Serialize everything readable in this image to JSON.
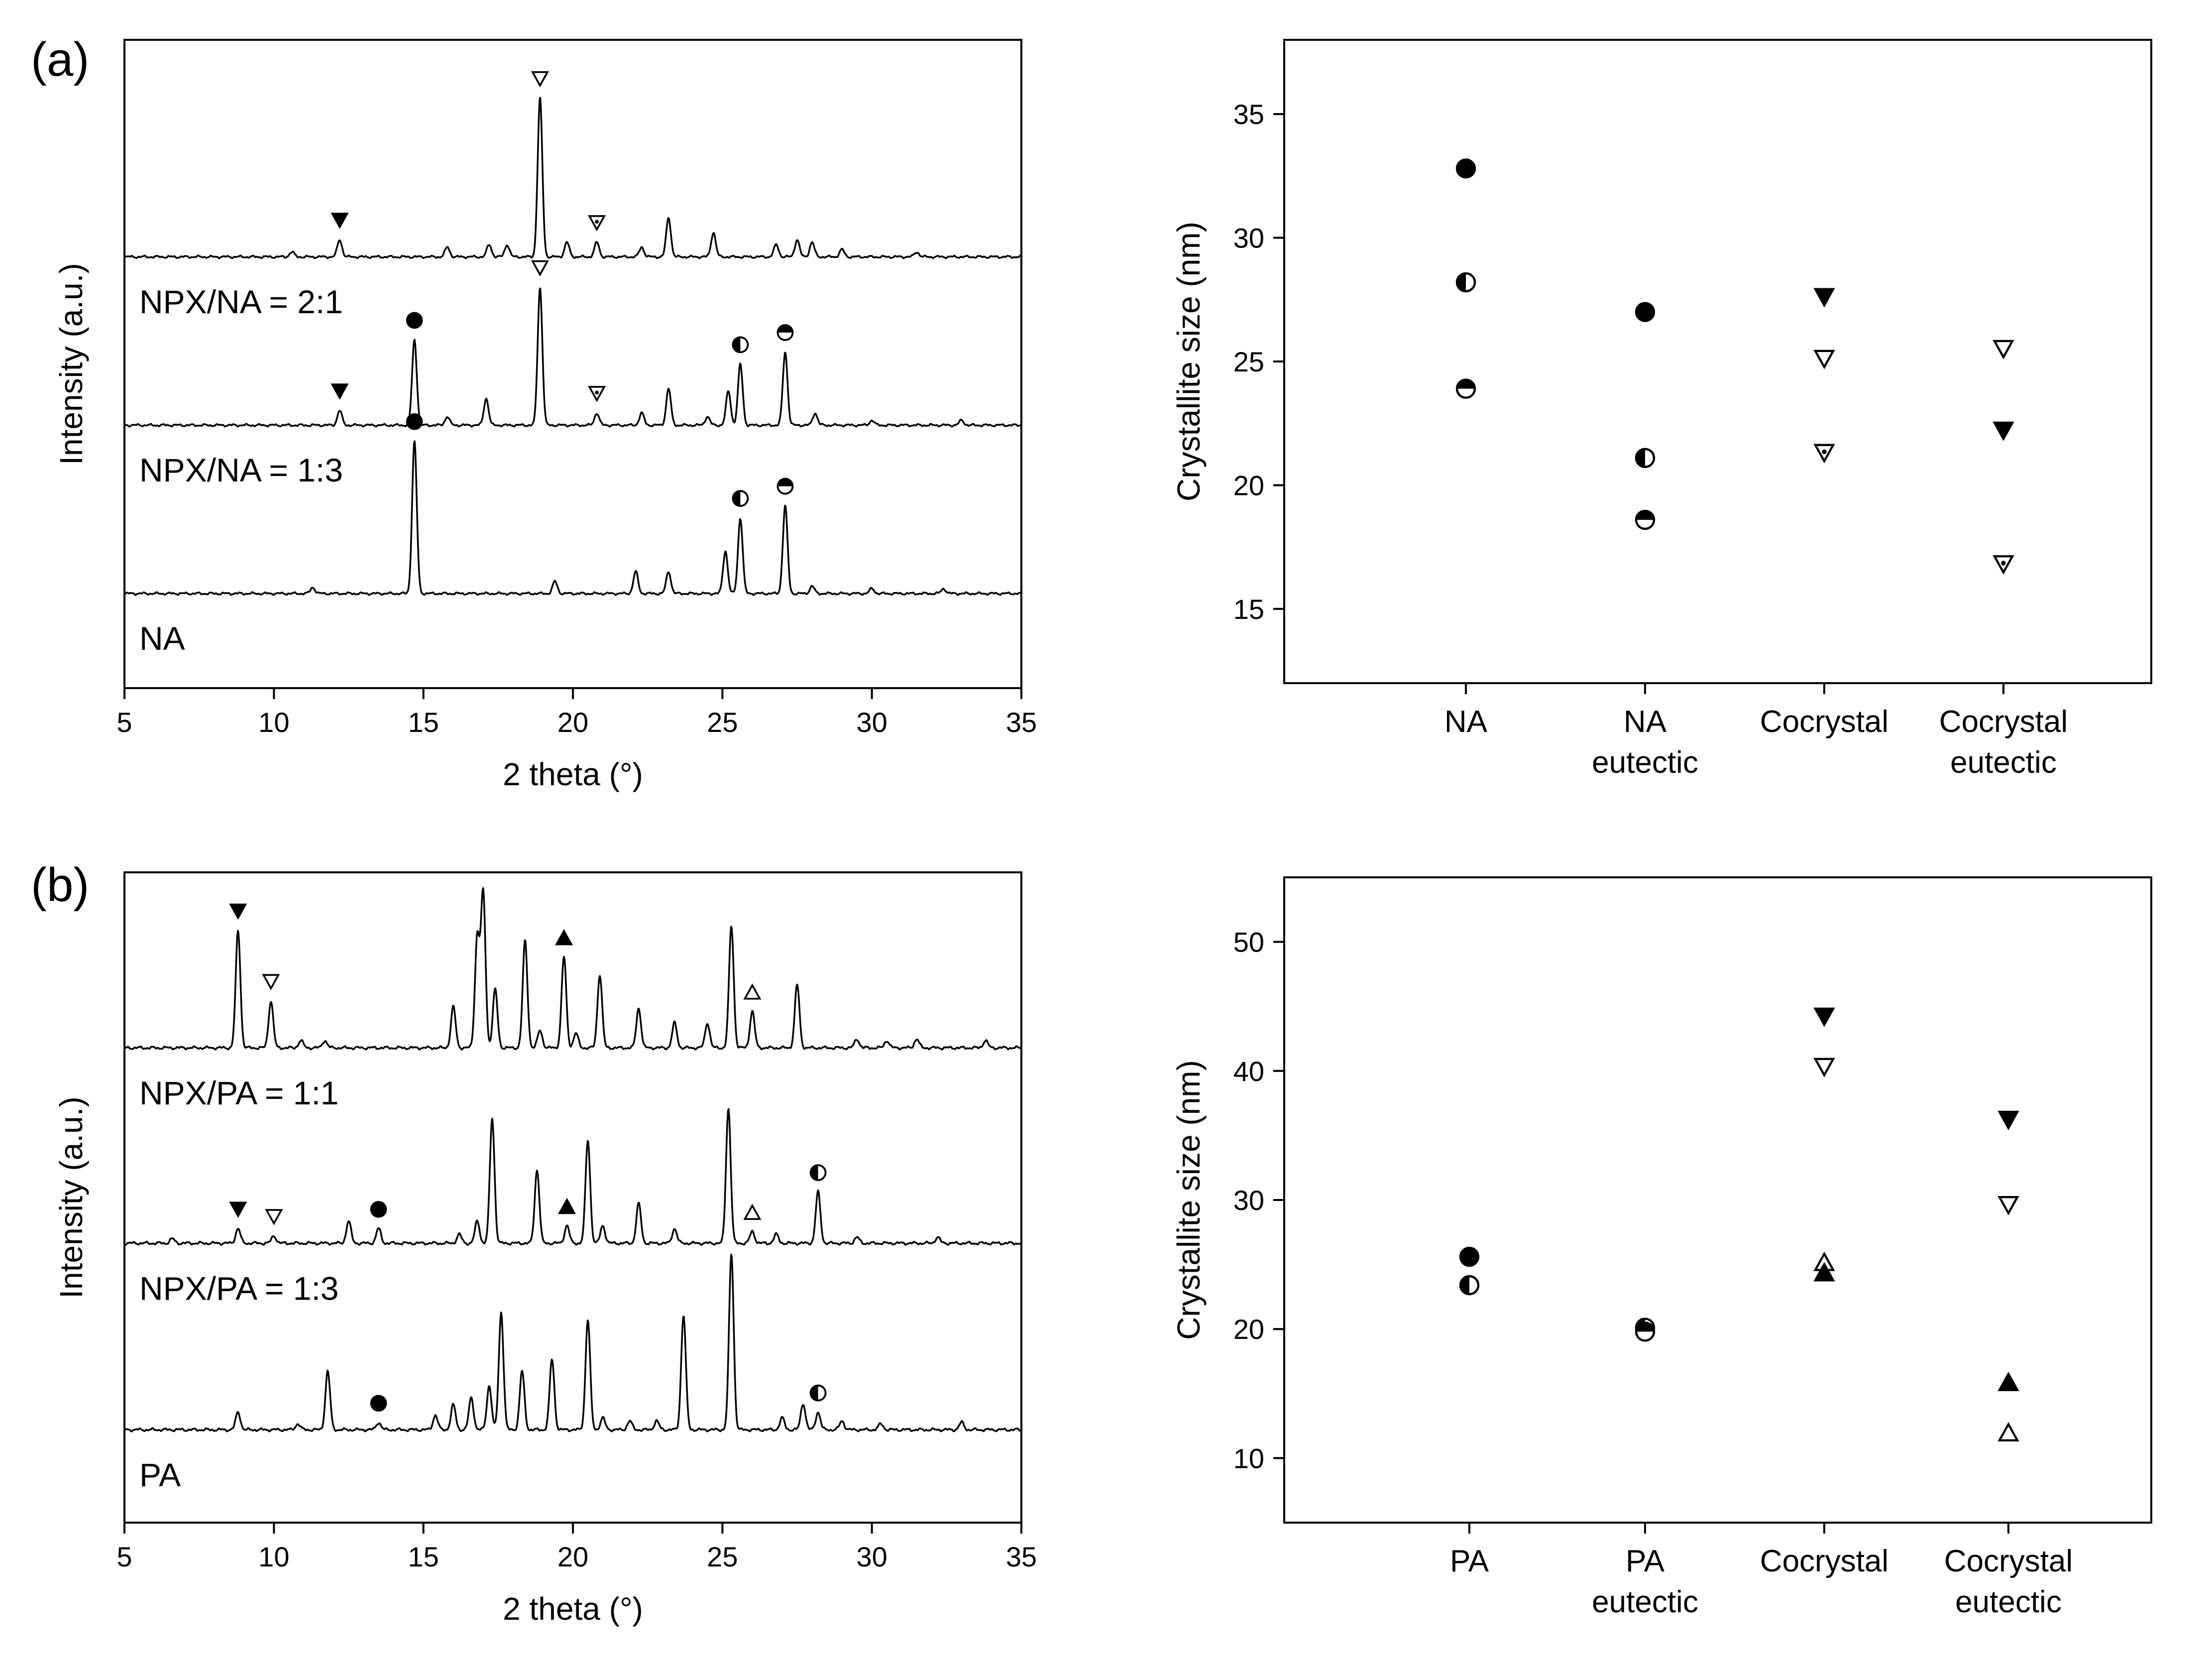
{
  "figure": {
    "panel_a_label": "(a)",
    "panel_b_label": "(b)"
  },
  "chart_data": [
    {
      "id": "a-xrd",
      "type": "line",
      "title": "",
      "xlabel": "2 theta (°)",
      "ylabel": "Intensity (a.u.)",
      "xlim": [
        5,
        35
      ],
      "xticks": [
        5,
        10,
        15,
        20,
        25,
        30,
        35
      ],
      "yticks": [],
      "offsets": [
        0,
        1.38,
        2.76
      ],
      "series": [
        {
          "name": "NA",
          "label": "NA",
          "offset_index": 0,
          "peaks": [
            [
              11.3,
              0.05
            ],
            [
              14.7,
              1.25
            ],
            [
              19.4,
              0.1
            ],
            [
              22.1,
              0.18
            ],
            [
              23.2,
              0.18
            ],
            [
              25.1,
              0.35
            ],
            [
              25.6,
              0.62
            ],
            [
              27.1,
              0.72
            ],
            [
              28.0,
              0.06
            ],
            [
              30.0,
              0.04
            ],
            [
              32.4,
              0.04
            ]
          ],
          "markers": [
            {
              "x": 14.7,
              "symbol": "filled-circle"
            },
            {
              "x": 25.6,
              "symbol": "half-left-circle"
            },
            {
              "x": 27.1,
              "symbol": "half-top-circle"
            }
          ]
        },
        {
          "name": "NPX/NA = 1:3",
          "label": "NPX/NA = 1:3",
          "offset_index": 1,
          "peaks": [
            [
              12.2,
              0.12
            ],
            [
              14.7,
              0.7
            ],
            [
              15.8,
              0.07
            ],
            [
              17.1,
              0.22
            ],
            [
              18.9,
              1.13
            ],
            [
              20.8,
              0.1
            ],
            [
              22.3,
              0.1
            ],
            [
              23.2,
              0.3
            ],
            [
              24.5,
              0.07
            ],
            [
              25.2,
              0.28
            ],
            [
              25.6,
              0.5
            ],
            [
              27.1,
              0.6
            ],
            [
              28.1,
              0.1
            ],
            [
              30.0,
              0.04
            ],
            [
              33.0,
              0.04
            ]
          ],
          "markers": [
            {
              "x": 12.2,
              "symbol": "filled-triangle-down"
            },
            {
              "x": 14.7,
              "symbol": "filled-circle"
            },
            {
              "x": 18.9,
              "symbol": "open-triangle-down"
            },
            {
              "x": 20.8,
              "symbol": "dotted-triangle-down"
            },
            {
              "x": 25.6,
              "symbol": "half-left-circle"
            },
            {
              "x": 27.1,
              "symbol": "half-top-circle"
            }
          ]
        },
        {
          "name": "NPX/NA = 2:1",
          "label": "NPX/NA = 2:1",
          "offset_index": 2,
          "peaks": [
            [
              10.6,
              0.04
            ],
            [
              12.2,
              0.14
            ],
            [
              15.8,
              0.08
            ],
            [
              17.2,
              0.1
            ],
            [
              17.8,
              0.1
            ],
            [
              18.9,
              1.3
            ],
            [
              19.8,
              0.12
            ],
            [
              20.8,
              0.12
            ],
            [
              22.3,
              0.08
            ],
            [
              23.2,
              0.32
            ],
            [
              24.7,
              0.2
            ],
            [
              26.8,
              0.1
            ],
            [
              27.5,
              0.14
            ],
            [
              28.0,
              0.12
            ],
            [
              29.0,
              0.06
            ],
            [
              31.5,
              0.04
            ]
          ],
          "markers": [
            {
              "x": 12.2,
              "symbol": "filled-triangle-down"
            },
            {
              "x": 18.9,
              "symbol": "open-triangle-down"
            },
            {
              "x": 20.8,
              "symbol": "dotted-triangle-down"
            }
          ]
        }
      ]
    },
    {
      "id": "a-size",
      "type": "scatter",
      "title": "",
      "xlabel": "",
      "ylabel": "Crystallite size (nm)",
      "ylim": [
        12,
        38
      ],
      "yticks": [
        15,
        20,
        25,
        30,
        35
      ],
      "categories": [
        {
          "line1": "NA",
          "line2": ""
        },
        {
          "line1": "NA",
          "line2": "eutectic"
        },
        {
          "line1": "Cocrystal",
          "line2": ""
        },
        {
          "line1": "Cocrystal",
          "line2": "eutectic"
        }
      ],
      "points": [
        {
          "category": 0,
          "value": 32.8,
          "symbol": "filled-circle"
        },
        {
          "category": 0,
          "value": 28.2,
          "symbol": "half-left-circle"
        },
        {
          "category": 0,
          "value": 23.9,
          "symbol": "half-top-circle"
        },
        {
          "category": 1,
          "value": 27.0,
          "symbol": "filled-circle"
        },
        {
          "category": 1,
          "value": 21.1,
          "symbol": "half-left-circle"
        },
        {
          "category": 1,
          "value": 18.6,
          "symbol": "half-top-circle"
        },
        {
          "category": 2,
          "value": 27.6,
          "symbol": "filled-triangle-down"
        },
        {
          "category": 2,
          "value": 25.1,
          "symbol": "open-triangle-down"
        },
        {
          "category": 2,
          "value": 21.3,
          "symbol": "dotted-triangle-down"
        },
        {
          "category": 3,
          "value": 25.5,
          "symbol": "open-triangle-down"
        },
        {
          "category": 3,
          "value": 22.2,
          "symbol": "filled-triangle-down"
        },
        {
          "category": 3,
          "value": 16.8,
          "symbol": "dotted-triangle-down"
        }
      ]
    },
    {
      "id": "b-xrd",
      "type": "line",
      "title": "",
      "xlabel": "2 theta (°)",
      "ylabel": "Intensity (a.u.)",
      "xlim": [
        5,
        35
      ],
      "xticks": [
        5,
        10,
        15,
        20,
        25,
        30,
        35
      ],
      "yticks": [],
      "offsets": [
        0,
        1.27,
        2.6
      ],
      "series": [
        {
          "name": "PA",
          "label": "PA",
          "offset_index": 0,
          "peaks": [
            [
              8.8,
              0.12
            ],
            [
              10.8,
              0.04
            ],
            [
              11.8,
              0.4
            ],
            [
              13.5,
              0.05
            ],
            [
              15.4,
              0.1
            ],
            [
              16.0,
              0.17
            ],
            [
              16.6,
              0.22
            ],
            [
              17.2,
              0.3
            ],
            [
              17.6,
              0.8
            ],
            [
              18.3,
              0.4
            ],
            [
              19.3,
              0.48
            ],
            [
              20.5,
              0.75
            ],
            [
              21.0,
              0.08
            ],
            [
              21.9,
              0.06
            ],
            [
              22.8,
              0.06
            ],
            [
              23.7,
              0.78
            ],
            [
              25.3,
              1.2
            ],
            [
              27.0,
              0.08
            ],
            [
              27.7,
              0.18
            ],
            [
              28.2,
              0.12
            ],
            [
              29.0,
              0.06
            ],
            [
              30.3,
              0.04
            ],
            [
              33.0,
              0.05
            ]
          ],
          "markers": [
            {
              "x": 13.5,
              "symbol": "filled-circle"
            },
            {
              "x": 28.2,
              "symbol": "half-left-circle"
            }
          ]
        },
        {
          "name": "NPX/PA = 1:3",
          "label": "NPX/PA = 1:3",
          "offset_index": 1,
          "peaks": [
            [
              6.6,
              0.03
            ],
            [
              8.8,
              0.1
            ],
            [
              10.0,
              0.05
            ],
            [
              12.5,
              0.15
            ],
            [
              13.5,
              0.1
            ],
            [
              16.2,
              0.06
            ],
            [
              16.8,
              0.15
            ],
            [
              17.3,
              0.85
            ],
            [
              18.8,
              0.5
            ],
            [
              19.8,
              0.12
            ],
            [
              20.5,
              0.7
            ],
            [
              21.0,
              0.12
            ],
            [
              22.2,
              0.27
            ],
            [
              23.4,
              0.1
            ],
            [
              25.2,
              0.92
            ],
            [
              26.0,
              0.08
            ],
            [
              26.8,
              0.06
            ],
            [
              28.2,
              0.35
            ],
            [
              29.5,
              0.04
            ],
            [
              32.2,
              0.04
            ]
          ],
          "markers": [
            {
              "x": 8.8,
              "symbol": "filled-triangle-down"
            },
            {
              "x": 10.0,
              "symbol": "open-triangle-down"
            },
            {
              "x": 13.5,
              "symbol": "filled-circle"
            },
            {
              "x": 19.8,
              "symbol": "filled-triangle-up"
            },
            {
              "x": 26.0,
              "symbol": "open-triangle-up"
            },
            {
              "x": 28.2,
              "symbol": "half-left-circle"
            }
          ]
        },
        {
          "name": "NPX/PA = 1:1",
          "label": "NPX/PA = 1:1",
          "offset_index": 2,
          "peaks": [
            [
              8.8,
              0.8
            ],
            [
              9.9,
              0.32
            ],
            [
              10.9,
              0.05
            ],
            [
              11.7,
              0.05
            ],
            [
              16.0,
              0.28
            ],
            [
              16.8,
              0.75
            ],
            [
              17.0,
              1.05
            ],
            [
              17.4,
              0.4
            ],
            [
              18.4,
              0.73
            ],
            [
              18.9,
              0.12
            ],
            [
              19.7,
              0.62
            ],
            [
              20.1,
              0.1
            ],
            [
              20.9,
              0.5
            ],
            [
              22.2,
              0.27
            ],
            [
              23.4,
              0.17
            ],
            [
              24.5,
              0.17
            ],
            [
              25.3,
              0.83
            ],
            [
              26.0,
              0.25
            ],
            [
              27.5,
              0.43
            ],
            [
              29.5,
              0.06
            ],
            [
              30.5,
              0.05
            ],
            [
              31.5,
              0.06
            ],
            [
              33.8,
              0.05
            ]
          ],
          "markers": [
            {
              "x": 8.8,
              "symbol": "filled-triangle-down"
            },
            {
              "x": 9.9,
              "symbol": "open-triangle-down"
            },
            {
              "x": 19.7,
              "symbol": "filled-triangle-up"
            },
            {
              "x": 26.0,
              "symbol": "open-triangle-up"
            }
          ]
        }
      ]
    },
    {
      "id": "b-size",
      "type": "scatter",
      "title": "",
      "xlabel": "",
      "ylabel": "Crystallite size (nm)",
      "ylim": [
        5,
        55
      ],
      "yticks": [
        10,
        20,
        30,
        40,
        50
      ],
      "categories": [
        {
          "line1": "PA",
          "line2": ""
        },
        {
          "line1": "PA",
          "line2": "eutectic"
        },
        {
          "line1": "Cocrystal",
          "line2": ""
        },
        {
          "line1": "Cocrystal",
          "line2": "eutectic"
        }
      ],
      "points": [
        {
          "category": 0,
          "value": 25.6,
          "symbol": "filled-circle"
        },
        {
          "category": 0,
          "value": 23.4,
          "symbol": "half-left-circle"
        },
        {
          "category": 1,
          "value": 20.1,
          "symbol": "half-left-circle"
        },
        {
          "category": 1,
          "value": 19.8,
          "symbol": "half-top-circle"
        },
        {
          "category": 2,
          "value": 44.2,
          "symbol": "filled-triangle-down"
        },
        {
          "category": 2,
          "value": 40.3,
          "symbol": "open-triangle-down"
        },
        {
          "category": 2,
          "value": 25.2,
          "symbol": "open-triangle-up"
        },
        {
          "category": 2,
          "value": 24.4,
          "symbol": "filled-triangle-up"
        },
        {
          "category": 3,
          "value": 36.2,
          "symbol": "filled-triangle-down"
        },
        {
          "category": 3,
          "value": 29.6,
          "symbol": "open-triangle-down"
        },
        {
          "category": 3,
          "value": 15.9,
          "symbol": "filled-triangle-up"
        },
        {
          "category": 3,
          "value": 12.0,
          "symbol": "open-triangle-up"
        }
      ]
    }
  ]
}
